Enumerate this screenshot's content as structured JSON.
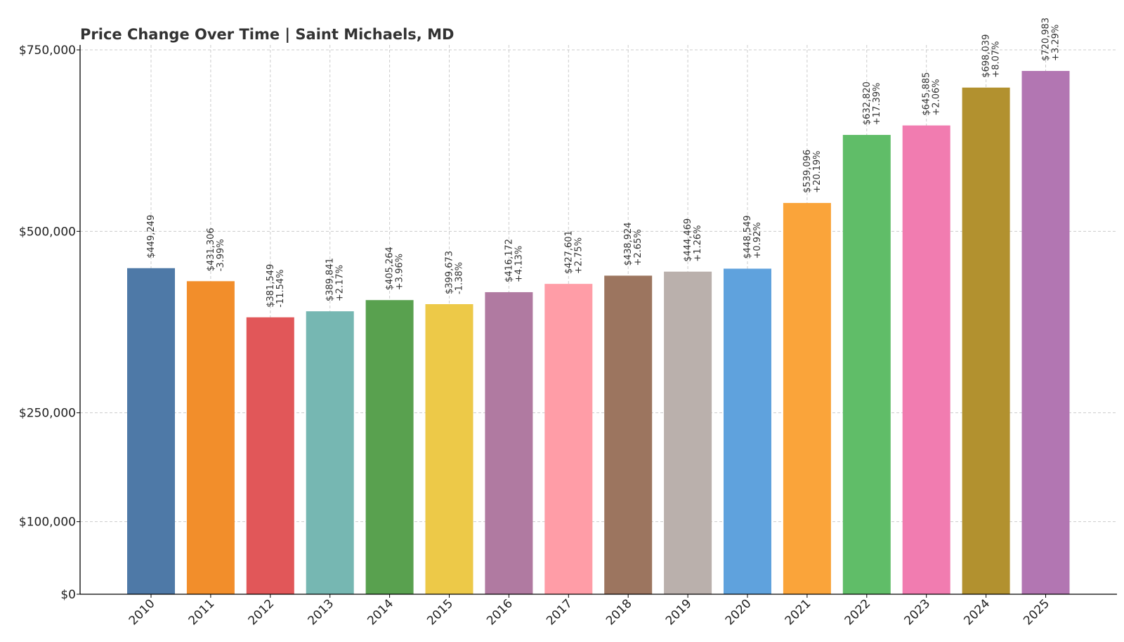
{
  "chart_data": {
    "type": "bar",
    "title": "Price Change Over Time | Saint Michaels, MD",
    "xlabel": "",
    "ylabel": "",
    "ylim": [
      0,
      750000
    ],
    "grid": true,
    "categories": [
      "2010",
      "2011",
      "2012",
      "2013",
      "2014",
      "2015",
      "2016",
      "2017",
      "2018",
      "2019",
      "2020",
      "2021",
      "2022",
      "2023",
      "2024",
      "2025"
    ],
    "values": [
      449249,
      431306,
      381549,
      389841,
      405264,
      399673,
      416172,
      427601,
      438924,
      444469,
      448549,
      539096,
      632820,
      645885,
      698039,
      720983
    ],
    "value_labels": [
      "$449,249",
      "$431,306",
      "$381,549",
      "$389,841",
      "$405,264",
      "$399,673",
      "$416,172",
      "$427,601",
      "$438,924",
      "$444,469",
      "$448,549",
      "$539,096",
      "$632,820",
      "$645,885",
      "$698,039",
      "$720,983"
    ],
    "change_labels": [
      "",
      "-3.99%",
      "-11.54%",
      "+2.17%",
      "+3.96%",
      "-1.38%",
      "+4.13%",
      "+2.75%",
      "+2.65%",
      "+1.26%",
      "+0.92%",
      "+20.19%",
      "+17.39%",
      "+2.06%",
      "+8.07%",
      "+3.29%"
    ],
    "yticks": [
      0,
      100000,
      250000,
      500000,
      750000
    ],
    "ytick_labels": [
      "$0",
      "$100,000",
      "$250,000",
      "$500,000",
      "$750,000"
    ],
    "colors": [
      "#4e79a7",
      "#f28e2b",
      "#e15759",
      "#76b7b2",
      "#59a14f",
      "#edc948",
      "#b07aa1",
      "#ff9da7",
      "#9c755f",
      "#bab0ac",
      "#5fa2dd",
      "#faa43a",
      "#60bd68",
      "#f17cb0",
      "#b2912f",
      "#b276b2"
    ]
  }
}
